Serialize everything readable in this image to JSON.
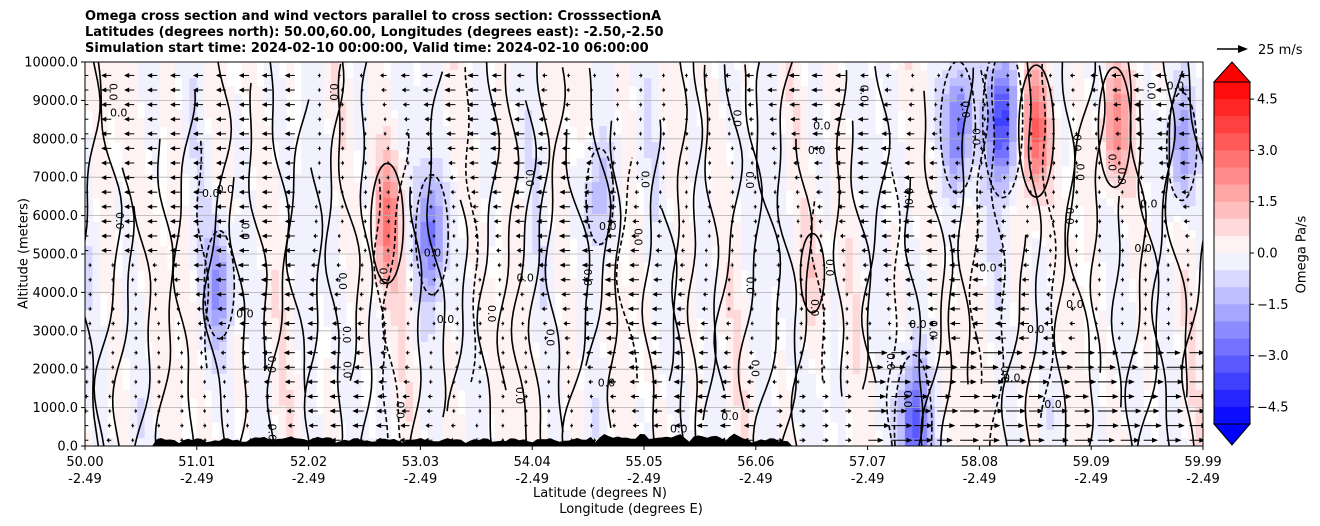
{
  "title_lines": [
    "Omega cross section and wind vectors parallel to cross section: CrosssectionA",
    "Latitudes (degrees north): 50.00,60.00, Longitudes (degrees east): -2.50,-2.50",
    "Simulation start time: 2024-02-10 00:00:00, Valid time: 2024-02-10 06:00:00"
  ],
  "chart_data": {
    "type": "heatmap",
    "title": "Omega cross section and wind vectors parallel to cross section: CrosssectionA",
    "ylabel": "Altitude (meters)",
    "xlabel_lines": [
      "Latitude (degrees N)",
      "Longitude (degrees E)"
    ],
    "ylim": [
      0,
      10000
    ],
    "y_ticks": [
      "0.0",
      "1000.0",
      "2000.0",
      "3000.0",
      "4000.0",
      "5000.0",
      "6000.0",
      "7000.0",
      "8000.0",
      "9000.0",
      "10000.0"
    ],
    "x_ticks": [
      {
        "lat": "50.00",
        "lon": "-2.49"
      },
      {
        "lat": "51.01",
        "lon": "-2.49"
      },
      {
        "lat": "52.02",
        "lon": "-2.49"
      },
      {
        "lat": "53.03",
        "lon": "-2.49"
      },
      {
        "lat": "54.04",
        "lon": "-2.49"
      },
      {
        "lat": "55.05",
        "lon": "-2.49"
      },
      {
        "lat": "56.06",
        "lon": "-2.49"
      },
      {
        "lat": "57.07",
        "lon": "-2.49"
      },
      {
        "lat": "58.08",
        "lon": "-2.49"
      },
      {
        "lat": "59.09",
        "lon": "-2.49"
      },
      {
        "lat": "59.99",
        "lon": "-2.49"
      }
    ],
    "grid": true,
    "colorbar": {
      "label": "Omega Pa/s",
      "range": [
        -5,
        5
      ],
      "ticks": [
        "4.5",
        "3.0",
        "1.5",
        "0.0",
        "−1.5",
        "−3.0",
        "−4.5"
      ],
      "colormap": "bwr",
      "extend": "both"
    },
    "contour_label": "0.0",
    "vector_key": {
      "label": "25 m/s",
      "value": 25
    },
    "omega_features": [
      {
        "lat": 51.2,
        "alt": 4200,
        "value": -2.0
      },
      {
        "lat": 52.7,
        "alt": 5800,
        "value": 2.5
      },
      {
        "lat": 53.1,
        "alt": 5500,
        "value": -2.5
      },
      {
        "lat": 54.6,
        "alt": 6500,
        "value": -1.5
      },
      {
        "lat": 56.5,
        "alt": 4500,
        "value": 0.8
      },
      {
        "lat": 57.4,
        "alt": 500,
        "value": -3.5
      },
      {
        "lat": 57.8,
        "alt": 8300,
        "value": -3.0
      },
      {
        "lat": 58.2,
        "alt": 8500,
        "value": -4.0
      },
      {
        "lat": 58.5,
        "alt": 8200,
        "value": 3.0
      },
      {
        "lat": 59.2,
        "alt": 8300,
        "value": 2.5
      },
      {
        "lat": 59.8,
        "alt": 7800,
        "value": -2.0
      }
    ]
  }
}
